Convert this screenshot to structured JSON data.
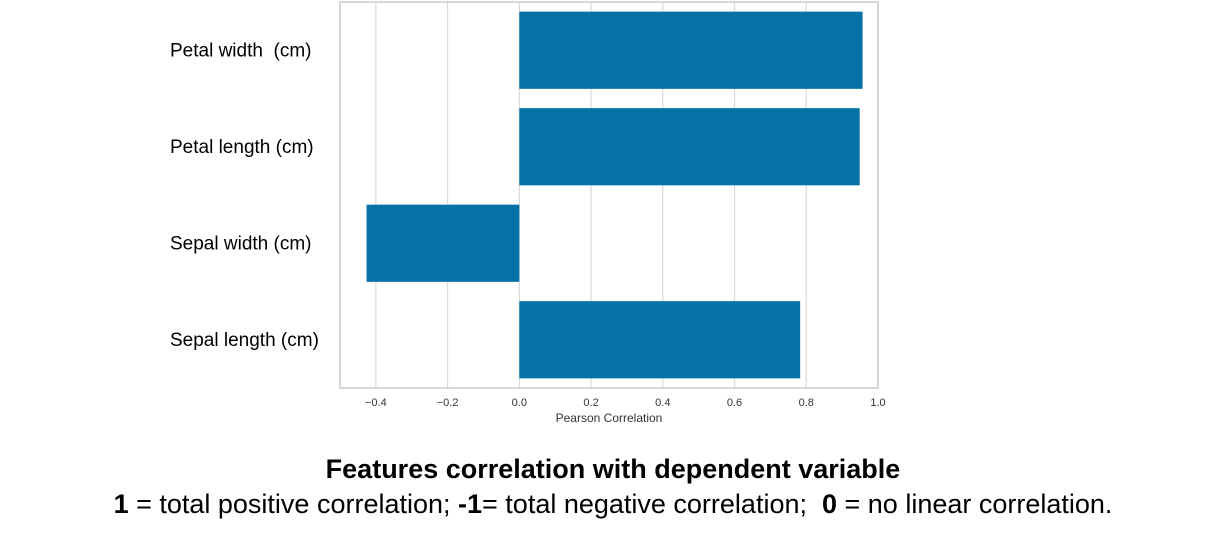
{
  "chart_data": {
    "type": "bar",
    "orientation": "horizontal",
    "categories": [
      "Petal width  (cm)",
      "Petal length (cm)",
      "Sepal width (cm)",
      "Sepal length (cm)"
    ],
    "values": [
      0.957,
      0.949,
      -0.426,
      0.783
    ],
    "xlabel": "Pearson Correlation",
    "xlim": [
      -0.5,
      1.0
    ],
    "xticks": [
      "−0.4",
      "−0.2",
      "0.0",
      "0.2",
      "0.4",
      "0.6",
      "0.8",
      "1.0"
    ],
    "xtick_values": [
      -0.4,
      -0.2,
      0.0,
      0.2,
      0.4,
      0.6,
      0.8,
      1.0
    ],
    "grid": true,
    "bar_color": "#0472a6",
    "grid_color": "#d9d9d9",
    "axis_color": "#cccccc"
  },
  "caption": {
    "title": "Features correlation with dependent variable",
    "note_parts": [
      {
        "text": "1",
        "bold": true
      },
      {
        "text": " = total positive correlation; ",
        "bold": false
      },
      {
        "text": "-1",
        "bold": true
      },
      {
        "text": "= total negative correlation;  ",
        "bold": false
      },
      {
        "text": "0",
        "bold": true
      },
      {
        "text": " = no linear correlation.",
        "bold": false
      }
    ]
  }
}
